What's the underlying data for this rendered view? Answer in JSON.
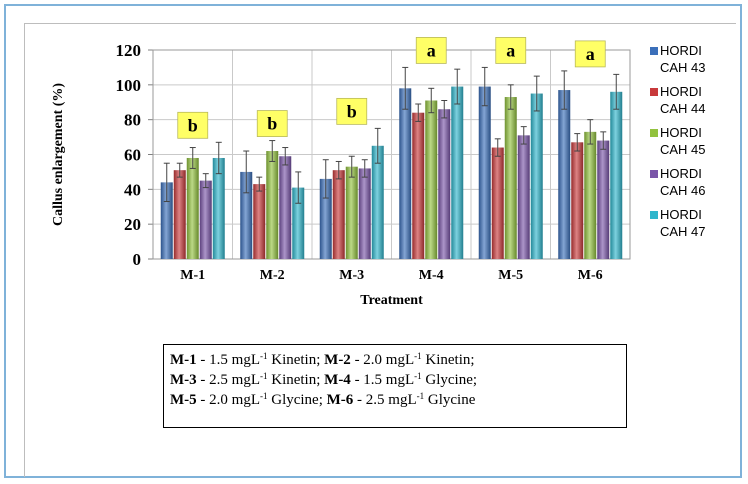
{
  "chart_data": {
    "type": "bar",
    "title": "",
    "xlabel": "Treatment",
    "ylabel": "Callus enlargement  (%)",
    "ylim": [
      0,
      120
    ],
    "yticks": [
      0,
      20,
      40,
      60,
      80,
      100,
      120
    ],
    "grid": true,
    "legend_position": "right",
    "categories": [
      "M-1",
      "M-2",
      "M-3",
      "M-4",
      "M-5",
      "M-6"
    ],
    "series": [
      {
        "name": "HORDI CAH 43",
        "color": "#3b6fba",
        "values": [
          44,
          50,
          46,
          98,
          99,
          97
        ],
        "errors": [
          11,
          12,
          11,
          12,
          11,
          11
        ]
      },
      {
        "name": "HORDI CAH 44",
        "color": "#c8393b",
        "values": [
          51,
          43,
          51,
          84,
          64,
          67
        ],
        "errors": [
          4,
          4,
          5,
          5,
          5,
          5
        ]
      },
      {
        "name": "HORDI CAH 45",
        "color": "#92c23e",
        "values": [
          58,
          62,
          53,
          91,
          93,
          73
        ],
        "errors": [
          6,
          6,
          6,
          7,
          7,
          7
        ]
      },
      {
        "name": "HORDI CAH 46",
        "color": "#7a55a8",
        "values": [
          45,
          59,
          52,
          86,
          71,
          68
        ],
        "errors": [
          4,
          5,
          5,
          5,
          5,
          5
        ]
      },
      {
        "name": "HORDI CAH 47",
        "color": "#2fb6cc",
        "values": [
          58,
          41,
          65,
          99,
          95,
          96
        ],
        "errors": [
          9,
          9,
          10,
          10,
          10,
          10
        ]
      }
    ],
    "annotations": [
      {
        "category": "M-1",
        "label": "b"
      },
      {
        "category": "M-2",
        "label": "b"
      },
      {
        "category": "M-3",
        "label": "b"
      },
      {
        "category": "M-4",
        "label": "a"
      },
      {
        "category": "M-5",
        "label": "a"
      },
      {
        "category": "M-6",
        "label": "a"
      }
    ],
    "annotation_color": "#ffff66"
  },
  "caption": {
    "lines": [
      [
        {
          "code": "M-1",
          "text": " - 1.5 mgL",
          "sup": "-1",
          "after": " Kinetin; "
        },
        {
          "code": "M-2",
          "text": " - 2.0 mgL",
          "sup": "-1",
          "after": " Kinetin;"
        }
      ],
      [
        {
          "code": "M-3",
          "text": " - 2.5 mgL",
          "sup": "-1",
          "after": " Kinetin; "
        },
        {
          "code": "M-4",
          "text": " - 1.5 mgL",
          "sup": "-1",
          "after": " Glycine;"
        }
      ],
      [
        {
          "code": "M-5",
          "text": " - 2.0 mgL",
          "sup": "-1",
          "after": " Glycine; "
        },
        {
          "code": "M-6",
          "text": " - 2.5 mgL",
          "sup": "-1",
          "after": " Glycine"
        }
      ]
    ]
  }
}
